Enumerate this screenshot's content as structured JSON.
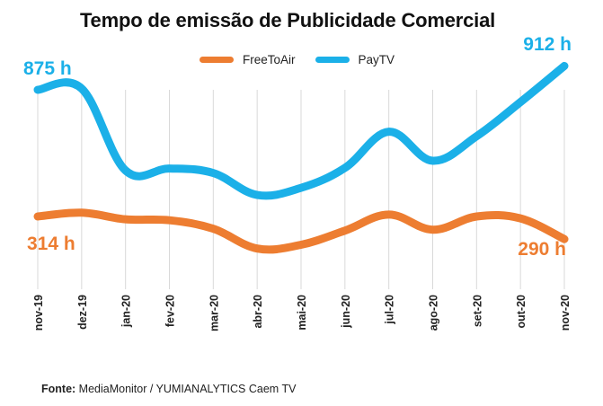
{
  "chart_data": {
    "type": "line",
    "title": "Tempo de emissão de Publicidade Comercial",
    "categories": [
      "nov-19",
      "dez-19",
      "jan-20",
      "fev-20",
      "mar-20",
      "abr-20",
      "mai-20",
      "jun-20",
      "jul-20",
      "ago-20",
      "set-20",
      "out-20",
      "nov-20"
    ],
    "series": [
      {
        "name": "FreeToAir",
        "color": "#ED7D31",
        "values": [
          314,
          318,
          311,
          310,
          301,
          280,
          284,
          299,
          316,
          300,
          314,
          312,
          290
        ]
      },
      {
        "name": "PayTV",
        "color": "#1BB0E8",
        "values": [
          875,
          877,
          750,
          753,
          746,
          712,
          723,
          754,
          810,
          765,
          803,
          856,
          912
        ]
      }
    ],
    "annotations": [
      {
        "series": "PayTV",
        "point": "nov-19",
        "text": "875 h"
      },
      {
        "series": "PayTV",
        "point": "nov-20",
        "text": "912 h"
      },
      {
        "series": "FreeToAir",
        "point": "nov-19",
        "text": "314 h"
      },
      {
        "series": "FreeToAir",
        "point": "nov-20",
        "text": "290 h"
      }
    ],
    "grid": "vertical",
    "legend": "top-center"
  },
  "source": {
    "label": "Fonte:",
    "text": "MediaMonitor / YUMIANALYTICS Caem TV"
  }
}
